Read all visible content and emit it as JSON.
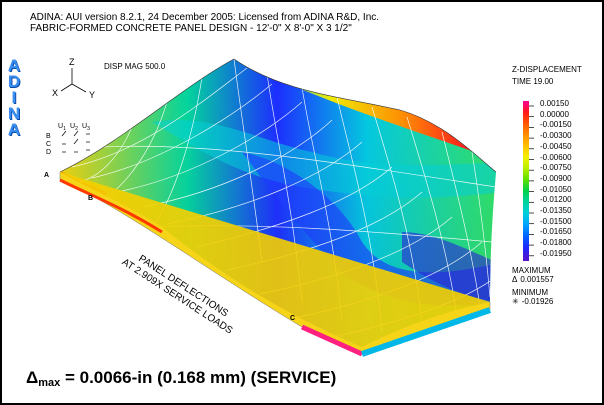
{
  "header": {
    "line1": "ADINA: AUI version 8.2.1, 24 December 2005: Licensed from ADINA R&D, Inc.",
    "line2": "FABRIC-FORMED CONCRETE PANEL DESIGN - 12'-0\" X 8'-0\" X 3 1/2\""
  },
  "logo_letters": [
    "A",
    "D",
    "I",
    "N",
    "A"
  ],
  "disp_mag": "DISP MAG 500.0",
  "triad": {
    "z": "Z",
    "x": "X",
    "y": "Y",
    "u1": "U",
    "u2": "U",
    "u3": "U",
    "s1": "1",
    "s2": "2",
    "s3": "3",
    "rows": [
      "B",
      "C",
      "D"
    ]
  },
  "legend": {
    "title": "Z-DISPLACEMENT",
    "time": "TIME 19.00",
    "values": [
      "0.00150",
      "0.00000",
      "-0.00150",
      "-0.00300",
      "-0.00450",
      "-0.00600",
      "-0.00750",
      "-0.00900",
      "-0.01050",
      "-0.01200",
      "-0.01350",
      "-0.01500",
      "-0.01650",
      "-0.01800",
      "-0.01950"
    ],
    "max_label": "MAXIMUM",
    "max_symbol": "Δ",
    "max_value": "0.001557",
    "min_label": "MINIMUM",
    "min_symbol": "✳",
    "min_value": "-0.01926"
  },
  "annotation": {
    "line1": "PANEL DEFLECTIONS",
    "line2": "AT 2.909X SERVICE LOADS"
  },
  "markers": {
    "a": "A",
    "b": "B",
    "c": "C"
  },
  "footer": {
    "delta": "Δ",
    "sub": "max",
    "text": " = 0.0066-in (0.168 mm) (SERVICE)"
  },
  "colors": {
    "logo": "#1e73d8",
    "frame": "#000000"
  }
}
